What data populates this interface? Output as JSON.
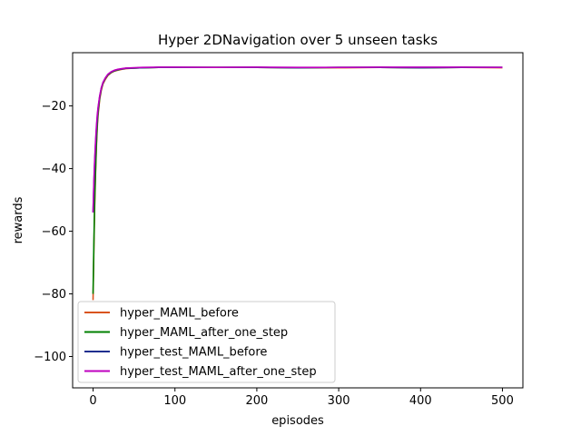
{
  "chart_data": {
    "type": "line",
    "title": "Hyper 2DNavigation over 5 unseen tasks",
    "xlabel": "episodes",
    "ylabel": "rewards",
    "xlim": [
      -25,
      525
    ],
    "ylim": [
      -110,
      -3
    ],
    "xticks": [
      0,
      100,
      200,
      300,
      400,
      500
    ],
    "yticks": [
      -100,
      -80,
      -60,
      -40,
      -20
    ],
    "grid": false,
    "legend_position": "lower-left",
    "series": [
      {
        "name": "hyper_MAML_before",
        "color": "#d9541e",
        "x": [
          0,
          1,
          2,
          3,
          4,
          5,
          6,
          8,
          10,
          12,
          15,
          18,
          22,
          26,
          30,
          35,
          40,
          50,
          60,
          80,
          100,
          150,
          200,
          250,
          300,
          350,
          400,
          450,
          500
        ],
        "y": [
          -82,
          -66,
          -52,
          -41,
          -33,
          -27,
          -23,
          -18,
          -15,
          -13,
          -11.5,
          -10.3,
          -9.4,
          -8.9,
          -8.6,
          -8.3,
          -8.1,
          -7.9,
          -7.8,
          -7.7,
          -7.7,
          -7.7,
          -7.7,
          -7.8,
          -7.8,
          -7.7,
          -7.8,
          -7.7,
          -7.8
        ]
      },
      {
        "name": "hyper_MAML_after_one_step",
        "color": "#008000",
        "x": [
          0,
          1,
          2,
          3,
          4,
          5,
          6,
          8,
          10,
          12,
          15,
          18,
          22,
          26,
          30,
          35,
          40,
          50,
          60,
          80,
          100,
          150,
          200,
          250,
          300,
          350,
          400,
          450,
          500
        ],
        "y": [
          -80,
          -64,
          -50,
          -40,
          -32,
          -26,
          -22,
          -17.5,
          -14.5,
          -12.7,
          -11.2,
          -10.1,
          -9.3,
          -8.8,
          -8.5,
          -8.2,
          -8.0,
          -7.9,
          -7.8,
          -7.7,
          -7.7,
          -7.7,
          -7.7,
          -7.8,
          -7.7,
          -7.7,
          -7.8,
          -7.7,
          -7.7
        ]
      },
      {
        "name": "hyper_test_MAML_before",
        "color": "#1f2f8f",
        "x": [
          0,
          1,
          2,
          3,
          4,
          5,
          6,
          8,
          10,
          12,
          15,
          18,
          22,
          26,
          30,
          35,
          40,
          50,
          60,
          80,
          100,
          150,
          200,
          250,
          300,
          350,
          400,
          450,
          500
        ],
        "y": [
          -54,
          -45,
          -38,
          -32,
          -27.5,
          -24,
          -21,
          -17,
          -14.3,
          -12.6,
          -11.1,
          -10.0,
          -9.2,
          -8.7,
          -8.4,
          -8.2,
          -8.0,
          -7.9,
          -7.8,
          -7.7,
          -7.7,
          -7.7,
          -7.7,
          -7.8,
          -7.7,
          -7.7,
          -7.8,
          -7.7,
          -7.7
        ]
      },
      {
        "name": "hyper_test_MAML_after_one_step",
        "color": "#bf00bf",
        "x": [
          0,
          1,
          2,
          3,
          4,
          5,
          6,
          8,
          10,
          12,
          15,
          18,
          22,
          26,
          30,
          35,
          40,
          50,
          60,
          80,
          100,
          150,
          200,
          250,
          300,
          350,
          400,
          450,
          500
        ],
        "y": [
          -54,
          -44,
          -37,
          -31,
          -26.5,
          -23,
          -20.5,
          -16.8,
          -14.2,
          -12.5,
          -11.0,
          -9.9,
          -9.1,
          -8.6,
          -8.3,
          -8.1,
          -7.9,
          -7.8,
          -7.7,
          -7.6,
          -7.6,
          -7.7,
          -7.6,
          -7.7,
          -7.7,
          -7.6,
          -7.6,
          -7.6,
          -7.7
        ]
      }
    ]
  }
}
